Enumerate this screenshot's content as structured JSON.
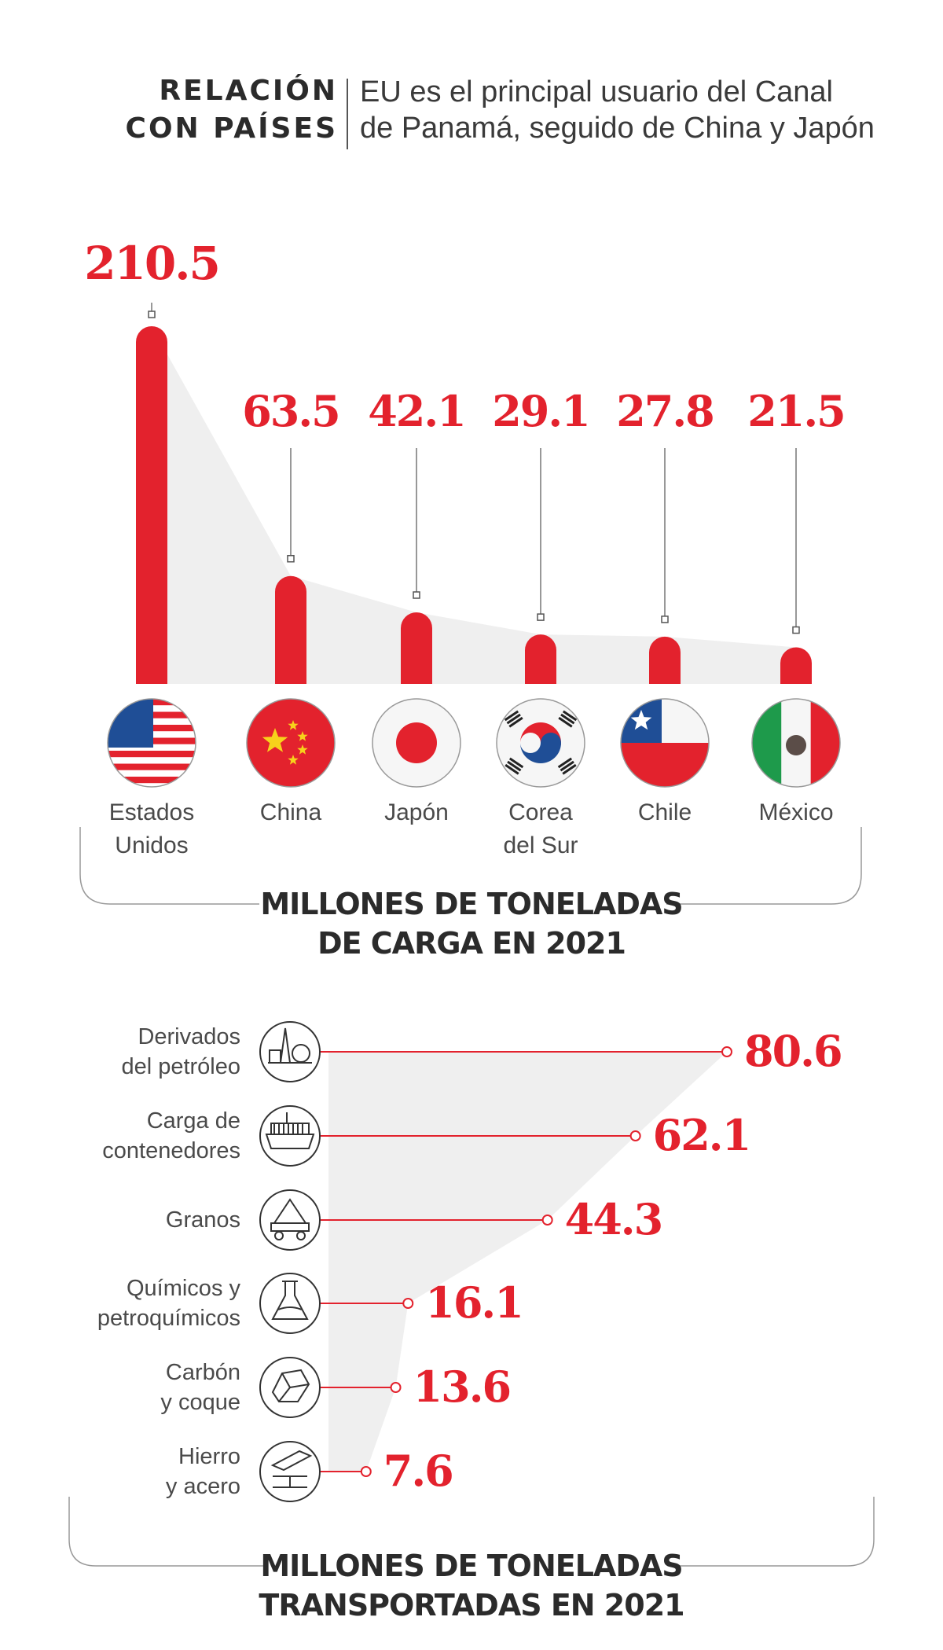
{
  "header": {
    "title_line1": "RELACIÓN",
    "title_line2": "CON PAÍSES",
    "subtitle_line1": "EU es el principal usuario del Canal",
    "subtitle_line2": "de Panamá, seguido de China y Japón"
  },
  "colors": {
    "accent": "#e3222d",
    "area": "#efefef",
    "text": "#2b2b2b",
    "line": "#6a6a6a"
  },
  "chart_data": [
    {
      "type": "bar",
      "categories": [
        "Estados Unidos",
        "China",
        "Japón",
        "Corea del Sur",
        "Chile",
        "México"
      ],
      "category_lines": [
        [
          "Estados",
          "Unidos"
        ],
        [
          "China"
        ],
        [
          "Japón"
        ],
        [
          "Corea",
          "del Sur"
        ],
        [
          "Chile"
        ],
        [
          "México"
        ]
      ],
      "values": [
        210.5,
        63.5,
        42.1,
        29.1,
        27.8,
        21.5
      ],
      "value_labels": [
        "210.5",
        "63.5",
        "42.1",
        "29.1",
        "27.8",
        "21.5"
      ],
      "icons": [
        "usa-flag-icon",
        "china-flag-icon",
        "japan-flag-icon",
        "south-korea-flag-icon",
        "chile-flag-icon",
        "mexico-flag-icon"
      ],
      "unit_label_line1": "MILLONES DE TONELADAS",
      "unit_label_line2": "DE CARGA EN 2021",
      "orientation": "vertical",
      "grid": false
    },
    {
      "type": "bar",
      "categories": [
        "Derivados del petróleo",
        "Carga de contenedores",
        "Granos",
        "Químicos y petroquímicos",
        "Carbón y coque",
        "Hierro y acero"
      ],
      "category_lines": [
        [
          "Derivados",
          "del petróleo"
        ],
        [
          "Carga de",
          "contenedores"
        ],
        [
          "Granos"
        ],
        [
          "Químicos y",
          "petroquímicos"
        ],
        [
          "Carbón",
          "y coque"
        ],
        [
          "Hierro",
          "y acero"
        ]
      ],
      "values": [
        80.6,
        62.1,
        44.3,
        16.1,
        13.6,
        7.6
      ],
      "value_labels": [
        "80.6",
        "62.1",
        "44.3",
        "16.1",
        "13.6",
        "7.6"
      ],
      "icons": [
        "oil-refinery-icon",
        "container-ship-icon",
        "grain-cart-icon",
        "chemical-flask-icon",
        "coal-icon",
        "steel-beam-icon"
      ],
      "unit_label_line1": "MILLONES DE TONELADAS",
      "unit_label_line2": "TRANSPORTADAS EN 2021",
      "orientation": "horizontal",
      "grid": false
    }
  ]
}
